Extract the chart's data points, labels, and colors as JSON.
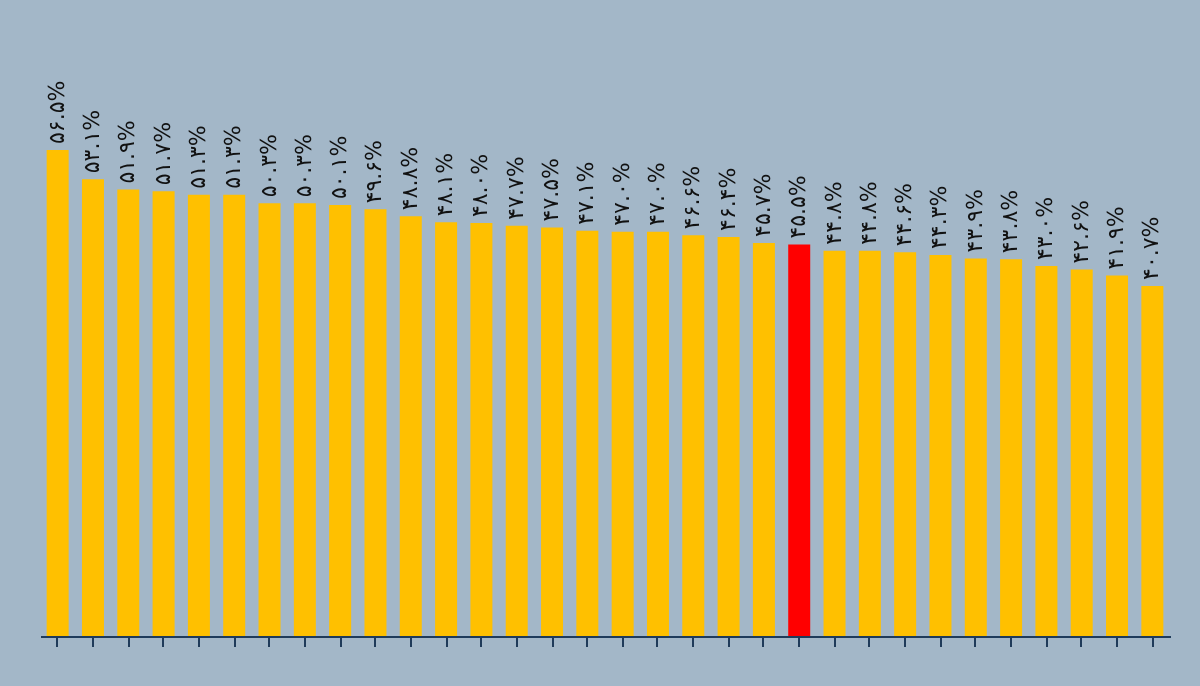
{
  "chart_data": {
    "type": "bar",
    "categories": [
      null,
      null,
      null,
      null,
      null,
      null,
      null,
      null,
      null,
      null,
      null,
      null,
      null,
      null,
      null,
      null,
      null,
      null,
      null,
      null,
      null,
      null,
      null,
      null,
      null,
      null,
      null,
      null,
      null,
      null,
      null,
      null
    ],
    "values": [
      56.5,
      53.1,
      51.9,
      51.7,
      51.3,
      51.3,
      50.3,
      50.3,
      50.1,
      49.6,
      48.8,
      48.1,
      48.0,
      47.7,
      47.5,
      47.1,
      47.0,
      47.0,
      46.6,
      46.4,
      45.7,
      45.5,
      44.8,
      44.8,
      44.6,
      44.3,
      43.9,
      43.8,
      43.0,
      42.6,
      41.9,
      40.7
    ],
    "value_labels": [
      "۵۶.۵%",
      "۵۳.۱%",
      "۵۱.۹%",
      "۵۱.۷%",
      "۵۱.۳%",
      "۵۱.۳%",
      "۵۰.۳%",
      "۵۰.۳%",
      "۵۰.۱%",
      "۴۹.۶%",
      "۴۸.۸%",
      "۴۸.۱%",
      "۴۸.۰%",
      "۴۷.۷%",
      "۴۷.۵%",
      "۴۷.۱%",
      "۴۷.۰%",
      "۴۷.۰%",
      "۴۶.۶%",
      "۴۶.۴%",
      "۴۵.۷%",
      "۴۵.۵%",
      "۴۴.۸%",
      "۴۴.۸%",
      "۴۴.۶%",
      "۴۴.۳%",
      "۴۳.۹%",
      "۴۳.۸%",
      "۴۳.۰%",
      "۴۲.۶%",
      "۴۱.۹%",
      "۴۰.۷%"
    ],
    "colors": [
      "#ffc000",
      "#ffc000",
      "#ffc000",
      "#ffc000",
      "#ffc000",
      "#ffc000",
      "#ffc000",
      "#ffc000",
      "#ffc000",
      "#ffc000",
      "#ffc000",
      "#ffc000",
      "#ffc000",
      "#ffc000",
      "#ffc000",
      "#ffc000",
      "#ffc000",
      "#ffc000",
      "#ffc000",
      "#ffc000",
      "#ffc000",
      "#ff0000",
      "#ffc000",
      "#ffc000",
      "#ffc000",
      "#ffc000",
      "#ffc000",
      "#ffc000",
      "#ffc000",
      "#ffc000",
      "#ffc000",
      "#ffc000"
    ]
  }
}
